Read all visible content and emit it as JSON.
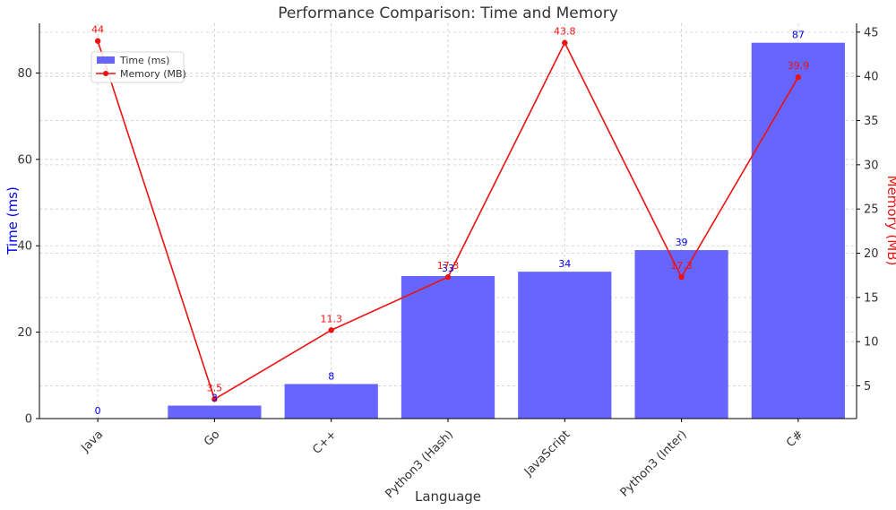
{
  "chart_data": {
    "type": "bar",
    "title": "Performance Comparison: Time and Memory",
    "xlabel": "Language",
    "ylabel": "Time (ms)",
    "y2label": "Memory (MB)",
    "categories": [
      "Java",
      "Go",
      "C++",
      "Python3 (Hash)",
      "JavaScript",
      "Python3 (Inter)",
      "C#"
    ],
    "ylim": [
      0,
      91.5
    ],
    "y2lim": [
      1.3,
      46
    ],
    "yticks": [
      0,
      20,
      40,
      60,
      80
    ],
    "y2ticks": [
      5,
      10,
      15,
      20,
      25,
      30,
      35,
      40,
      45
    ],
    "grid": true,
    "legend_position": "upper-left",
    "series": [
      {
        "name": "Time (ms)",
        "type": "bar",
        "axis": "left",
        "color": "#6666ff",
        "label_color": "#0000ee",
        "values": [
          0,
          3,
          8,
          33,
          34,
          39,
          87
        ],
        "labels": [
          "0",
          "3",
          "8",
          "33",
          "34",
          "39",
          "87"
        ]
      },
      {
        "name": "Memory (MB)",
        "type": "line",
        "axis": "right",
        "color": "#ee1111",
        "label_color": "#ee1111",
        "values": [
          44,
          3.5,
          11.3,
          17.3,
          43.8,
          17.3,
          39.9
        ],
        "labels": [
          "44",
          "3.5",
          "11.3",
          "17.3",
          "43.8",
          "17.3",
          "39.9"
        ]
      }
    ]
  },
  "colors": {
    "left_axis": "#0000ee",
    "right_axis": "#ee1111",
    "title": "#333333"
  }
}
